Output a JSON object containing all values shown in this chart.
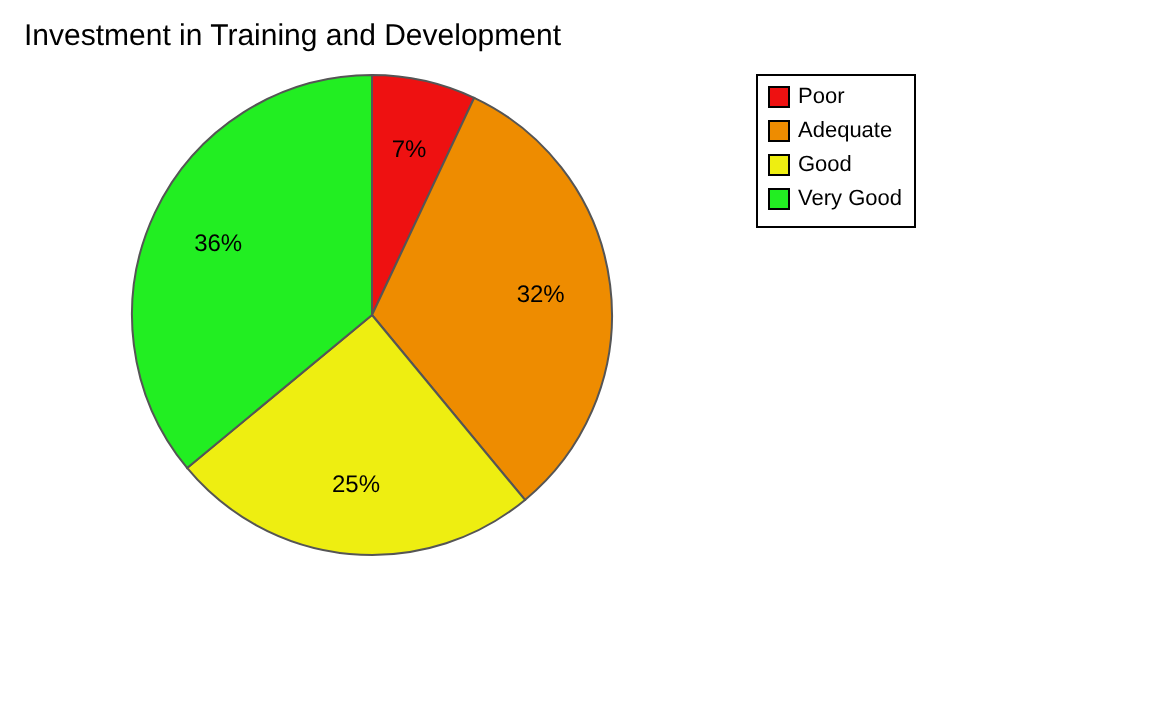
{
  "chart_data": {
    "type": "pie",
    "title": "Investment in Training and Development",
    "categories": [
      "Poor",
      "Adequate",
      "Good",
      "Very Good"
    ],
    "values": [
      7,
      32,
      25,
      36
    ],
    "colors": [
      "#ee1111",
      "#ee8c00",
      "#eeee11",
      "#22ee22"
    ],
    "value_labels": [
      "7%",
      "32%",
      "25%",
      "36%"
    ],
    "legend": "right"
  }
}
